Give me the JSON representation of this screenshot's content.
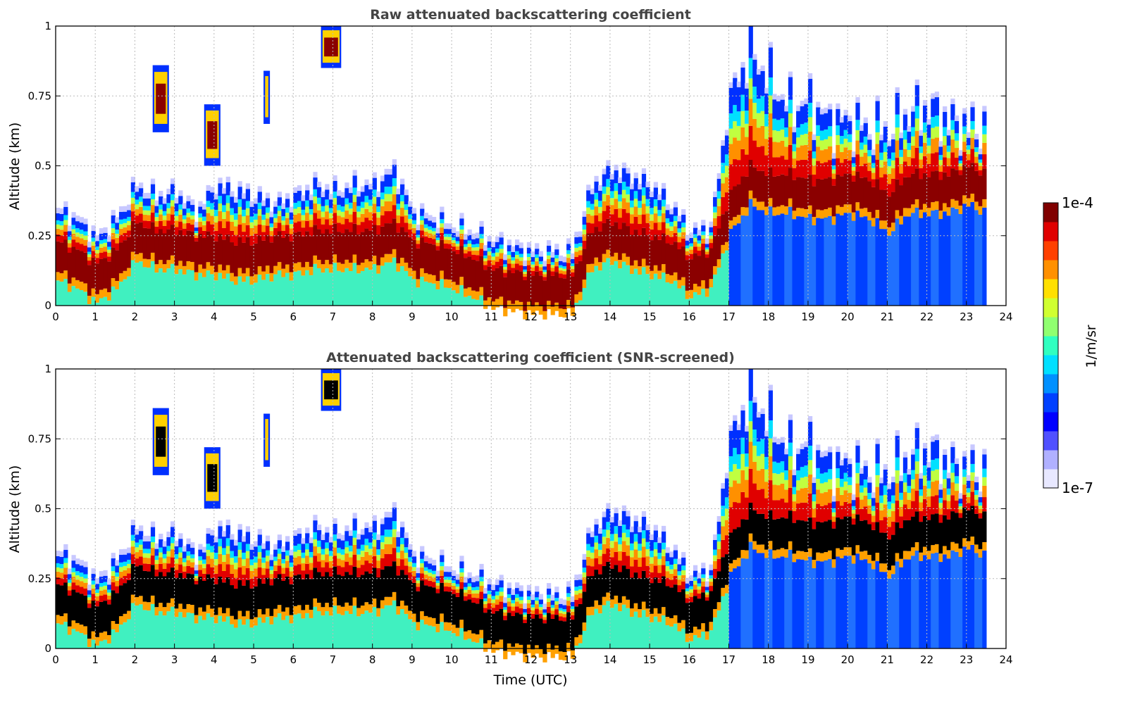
{
  "chart_data": [
    {
      "type": "heatmap",
      "title": "Raw attenuated backscattering coefficient",
      "xlabel": "",
      "ylabel": "Altitude (km)",
      "xlim": [
        0,
        24
      ],
      "ylim": [
        0,
        1
      ],
      "xticks": [
        "0",
        "1",
        "2",
        "3",
        "4",
        "5",
        "6",
        "7",
        "8",
        "9",
        "10",
        "11",
        "12",
        "13",
        "14",
        "15",
        "16",
        "17",
        "18",
        "19",
        "20",
        "21",
        "22",
        "23",
        "24"
      ],
      "yticks": [
        "0",
        "0.25",
        "0.5",
        "0.75",
        "1"
      ],
      "grid": true,
      "layer_peak_color": "#8b0000"
    },
    {
      "type": "heatmap",
      "title": "Attenuated backscattering coefficient (SNR-screened)",
      "xlabel": "Time (UTC)",
      "ylabel": "Altitude (km)",
      "xlim": [
        0,
        24
      ],
      "ylim": [
        0,
        1
      ],
      "xticks": [
        "0",
        "1",
        "2",
        "3",
        "4",
        "5",
        "6",
        "7",
        "8",
        "9",
        "10",
        "11",
        "12",
        "13",
        "14",
        "15",
        "16",
        "17",
        "18",
        "19",
        "20",
        "21",
        "22",
        "23",
        "24"
      ],
      "yticks": [
        "0",
        "0.25",
        "0.5",
        "0.75",
        "1"
      ],
      "grid": true,
      "layer_peak_color": "#000000"
    }
  ],
  "profile": {
    "time_h": [
      0,
      0.5,
      1,
      1.5,
      2,
      2.5,
      3,
      3.5,
      4,
      4.5,
      5,
      5.5,
      6,
      6.5,
      7,
      7.5,
      8,
      8.5,
      9,
      9.5,
      10,
      10.5,
      11,
      11.5,
      12,
      12.5,
      13,
      13.5,
      14,
      14.5,
      15,
      15.5,
      16,
      16.5,
      17,
      17.5,
      18,
      18.5,
      19,
      19.5,
      20,
      20.5,
      21,
      21.5,
      22,
      22.5,
      23,
      23.5
    ],
    "layer_top_km": [
      0.33,
      0.3,
      0.23,
      0.3,
      0.42,
      0.38,
      0.4,
      0.32,
      0.42,
      0.4,
      0.38,
      0.35,
      0.38,
      0.42,
      0.4,
      0.42,
      0.42,
      0.48,
      0.32,
      0.3,
      0.27,
      0.25,
      0.22,
      0.2,
      0.18,
      0.18,
      0.18,
      0.42,
      0.48,
      0.45,
      0.42,
      0.35,
      0.25,
      0.27,
      0.75,
      0.9,
      0.8,
      0.7,
      0.72,
      0.65,
      0.65,
      0.62,
      0.62,
      0.68,
      0.7,
      0.65,
      0.63,
      0.62
    ],
    "layer_peak_km": [
      0.18,
      0.15,
      0.1,
      0.15,
      0.25,
      0.22,
      0.22,
      0.2,
      0.2,
      0.18,
      0.18,
      0.2,
      0.2,
      0.22,
      0.22,
      0.22,
      0.22,
      0.25,
      0.18,
      0.17,
      0.15,
      0.12,
      0.08,
      0.07,
      0.06,
      0.06,
      0.06,
      0.22,
      0.25,
      0.22,
      0.2,
      0.18,
      0.12,
      0.15,
      0.35,
      0.45,
      0.42,
      0.42,
      0.4,
      0.4,
      0.42,
      0.4,
      0.35,
      0.42,
      0.42,
      0.42,
      0.45,
      0.42
    ],
    "cloud_features": [
      {
        "time_h": [
          2.45,
          2.85
        ],
        "alt_km": [
          0.62,
          0.86
        ]
      },
      {
        "time_h": [
          3.75,
          4.15
        ],
        "alt_km": [
          0.5,
          0.72
        ]
      },
      {
        "time_h": [
          5.25,
          5.4
        ],
        "alt_km": [
          0.65,
          0.84
        ]
      },
      {
        "time_h": [
          6.7,
          7.2
        ],
        "alt_km": [
          0.85,
          1.0
        ]
      }
    ]
  },
  "colorbar": {
    "label": "1/m/sr",
    "max_label": "1e-4",
    "min_label": "1e-7",
    "scale": "log",
    "colors": [
      "#e8e8ff",
      "#b0b0ff",
      "#5050ff",
      "#0000ff",
      "#0040ff",
      "#0090ff",
      "#00e0ff",
      "#30ffc0",
      "#90ff70",
      "#d0ff30",
      "#ffe000",
      "#ff9000",
      "#ff4000",
      "#e00000",
      "#800000"
    ]
  }
}
